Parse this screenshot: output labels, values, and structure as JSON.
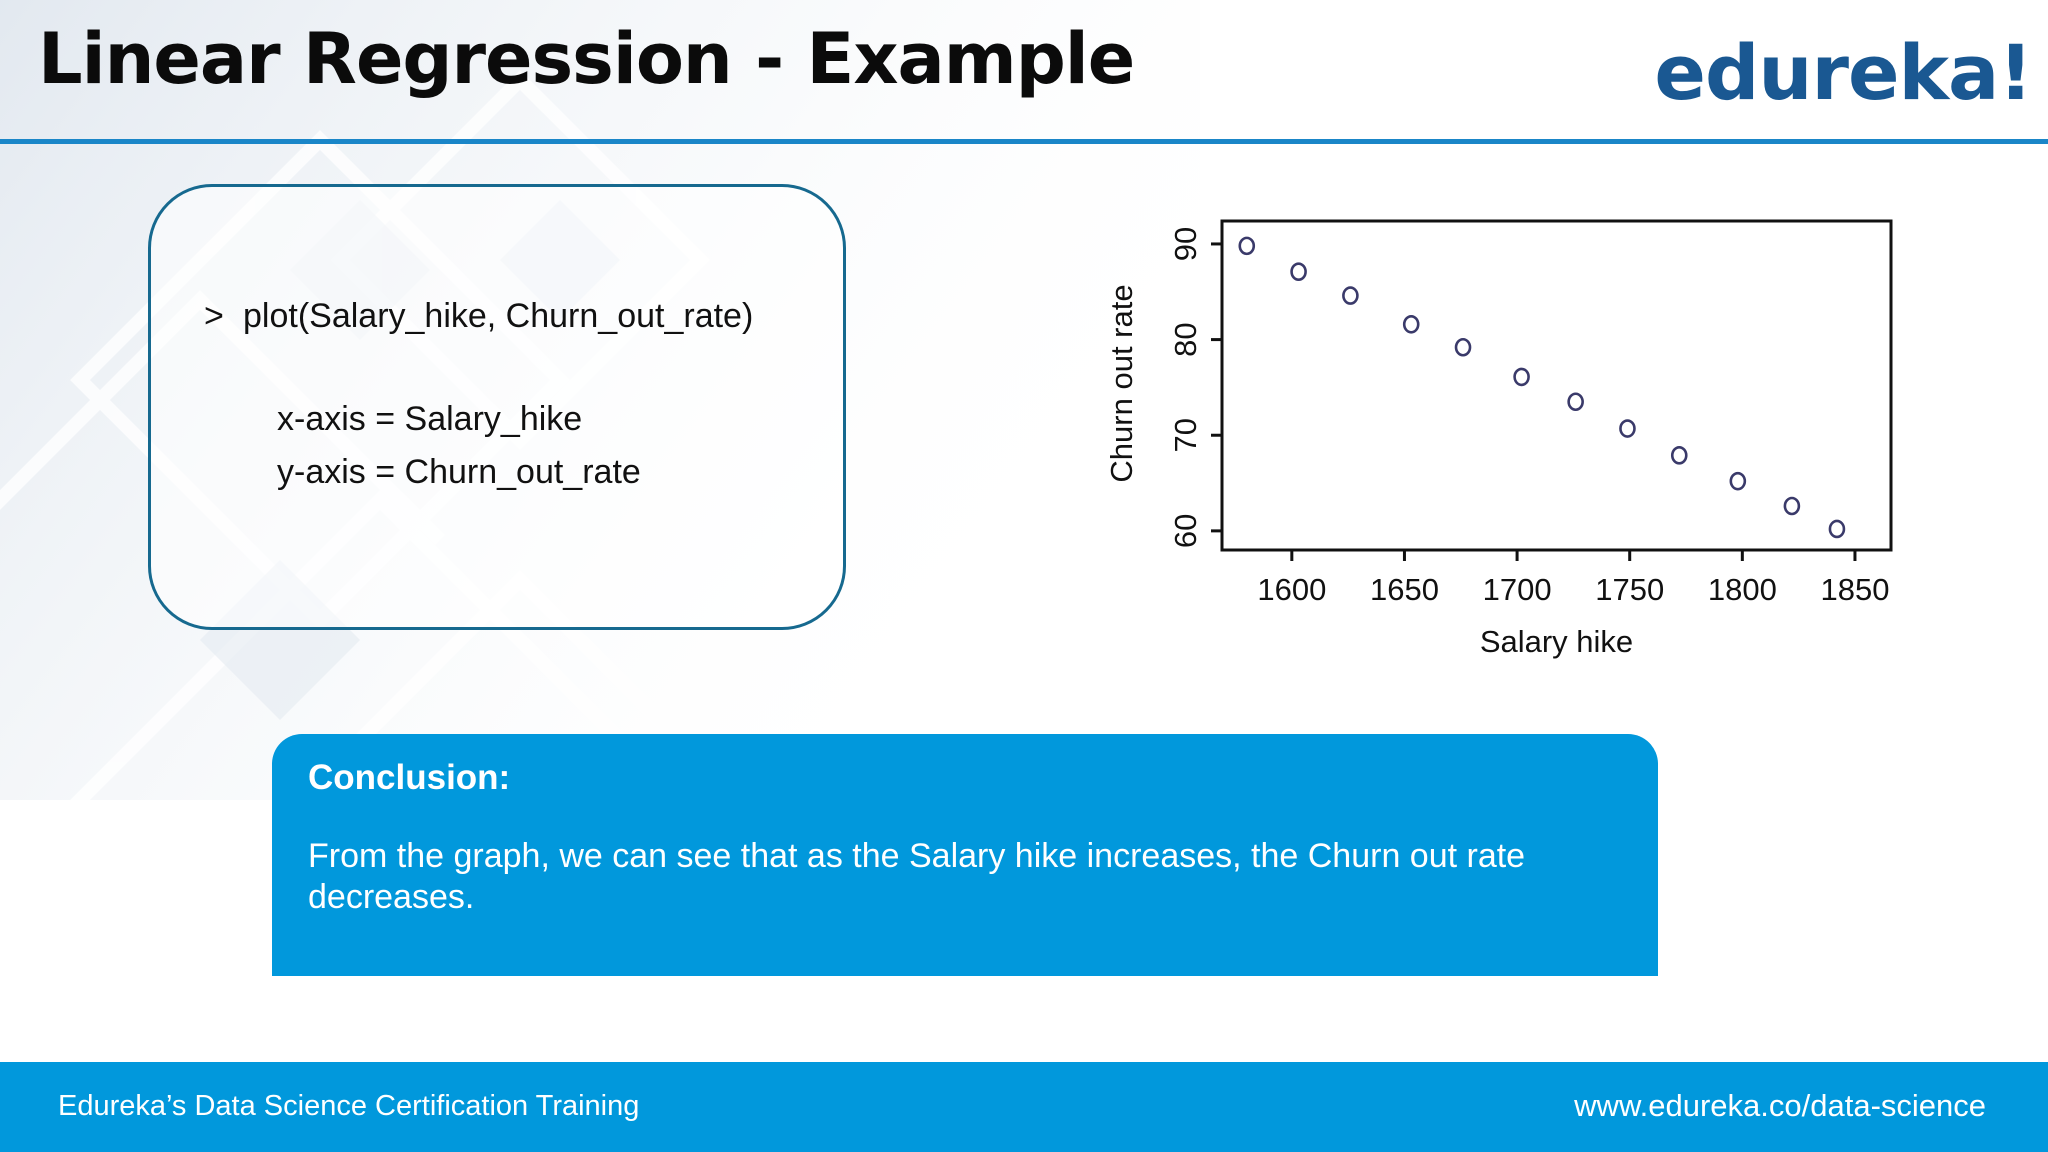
{
  "slide": {
    "title": "Linear Regression - Example",
    "logo": "edureka!"
  },
  "code_box": {
    "command_prompt": ">",
    "command": "plot(Salary_hike, Churn_out_rate)",
    "x_axis_line": "x-axis = Salary_hike",
    "y_axis_line": "y-axis = Churn_out_rate"
  },
  "conclusion": {
    "heading": "Conclusion:",
    "text": "From the graph, we can see that as the Salary hike increases, the Churn out rate decreases."
  },
  "footer": {
    "left": "Edureka’s Data Science Certification Training",
    "right": "www.edureka.co/data-science"
  },
  "colors": {
    "title_rule": "#1a86c8",
    "box_border": "#16698f",
    "panel": "#0198dc",
    "logo": "#1a5892",
    "point": "#3a3a6a"
  },
  "chart_data": {
    "type": "scatter",
    "xlabel": "Salary hike",
    "ylabel": "Churn out rate",
    "xticks": [
      1600,
      1650,
      1700,
      1750,
      1800,
      1850
    ],
    "yticks": [
      60,
      70,
      80,
      90
    ],
    "xlim": [
      1569,
      1866
    ],
    "ylim": [
      58,
      92.4
    ],
    "grid": false,
    "x": [
      1580,
      1603,
      1626,
      1653,
      1676,
      1702,
      1726,
      1749,
      1772,
      1798,
      1822,
      1842
    ],
    "y": [
      89.8,
      87.1,
      84.6,
      81.6,
      79.2,
      76.1,
      73.5,
      70.7,
      67.9,
      65.2,
      62.6,
      60.2
    ]
  }
}
